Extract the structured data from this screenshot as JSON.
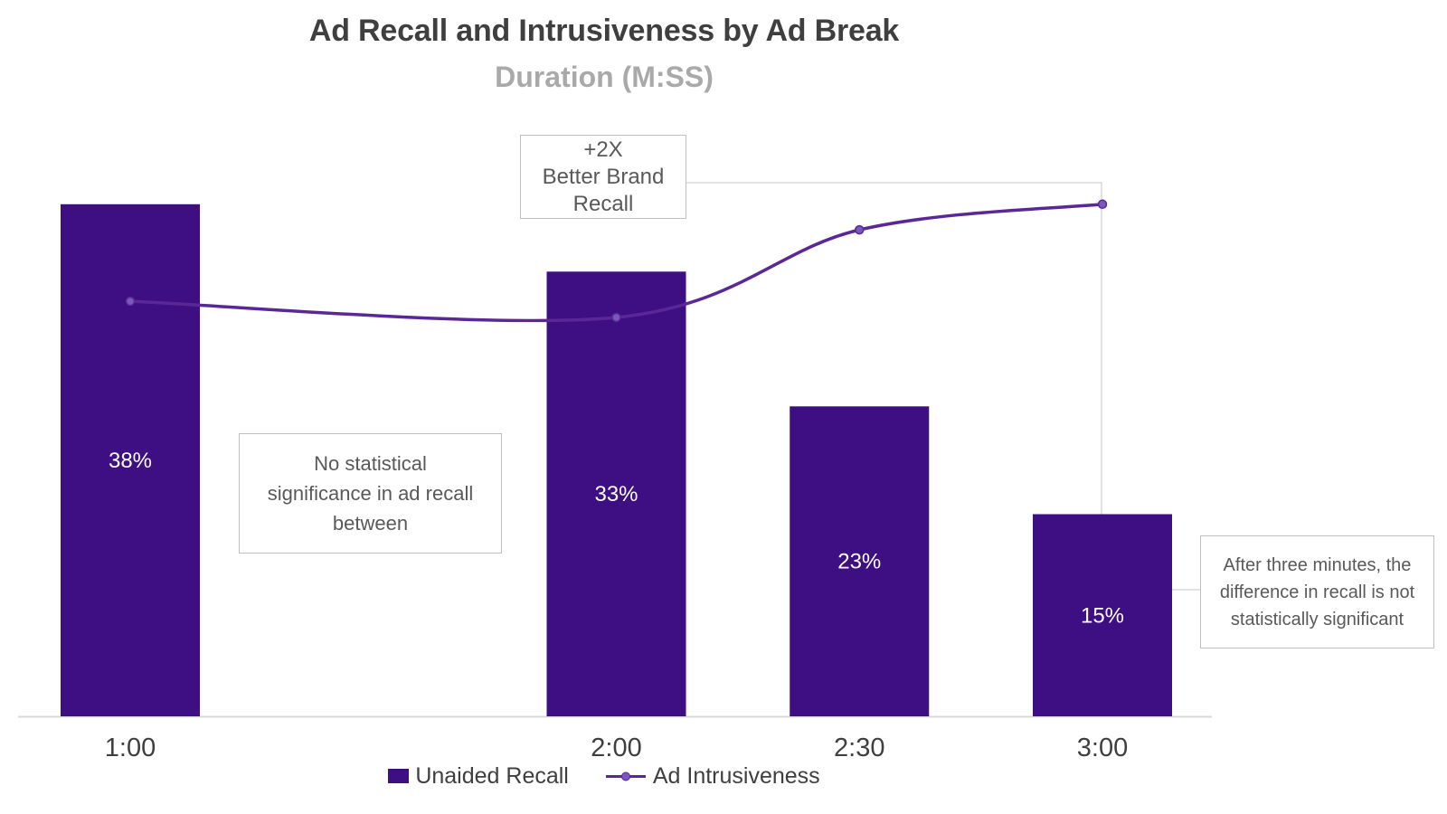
{
  "chart_data": {
    "type": "bar+line",
    "title": "Ad Recall and Intrusiveness by Ad Break",
    "subtitle": "Duration (M:SS)",
    "categories": [
      "1:00",
      "2:00",
      "2:30",
      "3:00"
    ],
    "x_seconds": [
      60,
      120,
      150,
      180
    ],
    "series": [
      {
        "name": "Unaided Recall",
        "type": "bar",
        "unit": "%",
        "values": [
          38,
          33,
          23,
          15
        ],
        "labels": [
          "38%",
          "33%",
          "23%",
          "15%"
        ],
        "color": "#3E0E83"
      },
      {
        "name": "Ad Intrusiveness",
        "type": "line",
        "marker": "circle",
        "color": "#5A2896",
        "values_est_pct": [
          30.8,
          29.6,
          36.1,
          38.0
        ],
        "note": "no value axis shown; heights estimated against the recall scale"
      }
    ],
    "ylim": [
      0,
      53
    ],
    "grid": "off",
    "legend_position": "bottom-center",
    "annotations": [
      {
        "id": "plus2x",
        "lines": [
          "+2X",
          "Better Brand",
          "Recall"
        ]
      },
      {
        "id": "no-stat",
        "lines": [
          "No statistical",
          "significance in ad recall",
          "between"
        ]
      },
      {
        "id": "after3",
        "lines": [
          "After three minutes, the",
          "difference in recall is not",
          "statistically significant"
        ]
      }
    ]
  },
  "colors": {
    "bar": "#3E0E83",
    "line": "#5A2896",
    "marker_fill": "#7659B8",
    "title": "#3F3F3F",
    "subtitle": "#A9A9A9",
    "tick_label": "#3F3F3F",
    "bar_label": "#FFFFFF",
    "annotation_text": "#595959",
    "annotation_border": "#BFBFBF",
    "connector": "#D9D9D9",
    "axis_line": "#D9D9D9"
  }
}
